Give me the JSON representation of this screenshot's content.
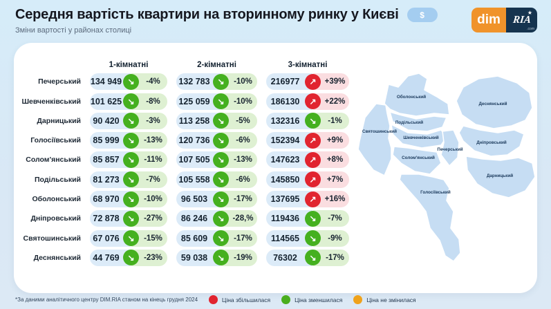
{
  "header": {
    "title": "Середня вартість квартири на вторинному ринку у Києві",
    "badge": "$",
    "subtitle": "Зміни вартості у районах столиці",
    "logo_dim": "dim",
    "logo_ria": "RIA",
    "logo_ria_star": "★",
    "logo_ria_domain": ".com"
  },
  "icons": {
    "up": "↗",
    "down": "↘",
    "flat": "→"
  },
  "chart_data": {
    "type": "table",
    "title": "Середня вартість квартири на вторинному ринку у Києві",
    "subtitle": "Зміни вартості у районах столиці",
    "columns": [
      "1-кімнатні",
      "2-кімнатні",
      "3-кімнатні"
    ],
    "rows": [
      {
        "district": "Печерський",
        "cells": [
          {
            "price": "134 949",
            "dir": "down",
            "pct": "-4%"
          },
          {
            "price": "132 783",
            "dir": "down",
            "pct": "-10%"
          },
          {
            "price": "216977",
            "dir": "up",
            "pct": "+39%"
          }
        ]
      },
      {
        "district": "Шевченківський",
        "cells": [
          {
            "price": "101 625",
            "dir": "down",
            "pct": "-8%"
          },
          {
            "price": "125 059",
            "dir": "down",
            "pct": "-10%"
          },
          {
            "price": "186130",
            "dir": "up",
            "pct": "+22%"
          }
        ]
      },
      {
        "district": "Дарницький",
        "cells": [
          {
            "price": "90 420",
            "dir": "down",
            "pct": "-3%"
          },
          {
            "price": "113 258",
            "dir": "down",
            "pct": "-5%"
          },
          {
            "price": "132316",
            "dir": "down",
            "pct": "-1%"
          }
        ]
      },
      {
        "district": "Голосіївський",
        "cells": [
          {
            "price": "85 999",
            "dir": "down",
            "pct": "-13%"
          },
          {
            "price": "120 736",
            "dir": "down",
            "pct": "-6%"
          },
          {
            "price": "152394",
            "dir": "up",
            "pct": "+9%"
          }
        ]
      },
      {
        "district": "Солом'янський",
        "cells": [
          {
            "price": "85 857",
            "dir": "down",
            "pct": "-11%"
          },
          {
            "price": "107 505",
            "dir": "down",
            "pct": "-13%"
          },
          {
            "price": "147623",
            "dir": "up",
            "pct": "+8%"
          }
        ]
      },
      {
        "district": "Подільський",
        "cells": [
          {
            "price": "81 273",
            "dir": "down",
            "pct": "-7%"
          },
          {
            "price": "105 558",
            "dir": "down",
            "pct": "-6%"
          },
          {
            "price": "145850",
            "dir": "up",
            "pct": "+7%"
          }
        ]
      },
      {
        "district": "Оболонський",
        "cells": [
          {
            "price": "68 970",
            "dir": "down",
            "pct": "-10%"
          },
          {
            "price": "96 503",
            "dir": "down",
            "pct": "-17%"
          },
          {
            "price": "137695",
            "dir": "up",
            "pct": "+16%"
          }
        ]
      },
      {
        "district": "Дніпровський",
        "cells": [
          {
            "price": "72 878",
            "dir": "down",
            "pct": "-27%"
          },
          {
            "price": "86 246",
            "dir": "down",
            "pct": "-28,%"
          },
          {
            "price": "119436",
            "dir": "down",
            "pct": "-7%"
          }
        ]
      },
      {
        "district": "Святошинський",
        "cells": [
          {
            "price": "67 076",
            "dir": "down",
            "pct": "-15%"
          },
          {
            "price": "85 609",
            "dir": "down",
            "pct": "-17%"
          },
          {
            "price": "114565",
            "dir": "down",
            "pct": "-9%"
          }
        ]
      },
      {
        "district": "Деснянський",
        "cells": [
          {
            "price": "44 769",
            "dir": "down",
            "pct": "-23%"
          },
          {
            "price": "59 038",
            "dir": "down",
            "pct": "-19%"
          },
          {
            "price": "76302",
            "dir": "down",
            "pct": "-17%"
          }
        ]
      }
    ]
  },
  "map": {
    "districts": [
      "Оболонський",
      "Подільський",
      "Шевченківський",
      "Солом'янський",
      "Печерський",
      "Голосіївський",
      "Святошинський",
      "Деснянський",
      "Дніпровський",
      "Дарницький"
    ]
  },
  "footer": {
    "note": "*За даними аналітичного центру DIM.RIA станом на кінець грудня 2024",
    "legend": [
      {
        "label": "Ціна збільшилася",
        "dir": "up",
        "color": "#e1242f"
      },
      {
        "label": "Ціна зменшилася",
        "dir": "down",
        "color": "#4aae1e"
      },
      {
        "label": "Ціна не змінилася",
        "dir": "flat",
        "color": "#efa21b"
      }
    ]
  },
  "colors": {
    "accent_up": "#e1242f",
    "accent_down": "#45b01f",
    "accent_flat": "#efa21b",
    "price_bg": "#dcebf8",
    "pct_down_bg": "#def0d2",
    "pct_up_bg": "#fadde0",
    "map_fill": "#c6ddf3",
    "logo_dim_bg": "#f0932b",
    "logo_ria_bg": "#16344f"
  }
}
